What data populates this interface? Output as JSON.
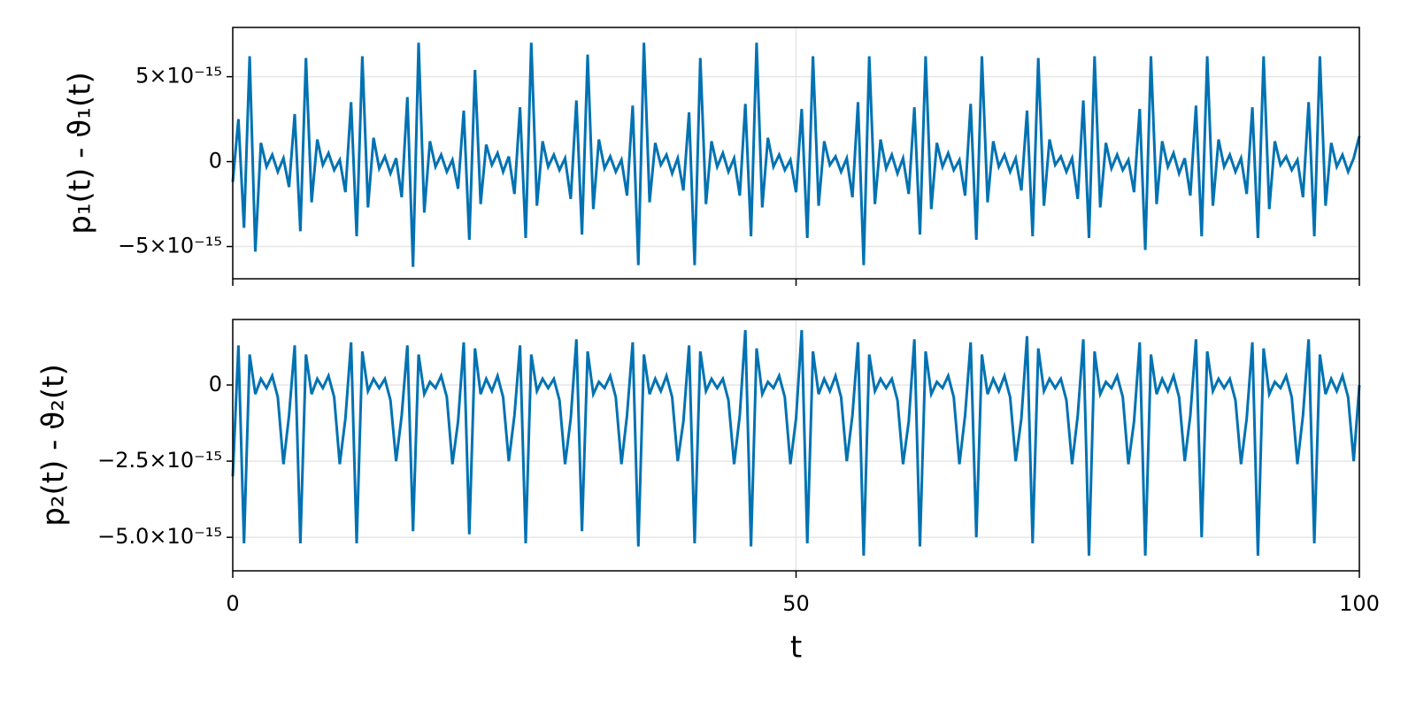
{
  "chart_data": [
    {
      "type": "line",
      "ylabel": "p₁(t) - ϑ₁(t)",
      "color": "#0072b2",
      "grid": true,
      "xlim": [
        0,
        100
      ],
      "xticks": [
        0,
        50,
        100
      ],
      "ylim": [
        -6.9e-15,
        7.9e-15
      ],
      "yticks": [
        {
          "value": -5e-15,
          "label": "−5×10⁻¹⁵"
        },
        0,
        {
          "value": 5e-15,
          "label": "5×10⁻¹⁵"
        }
      ],
      "x": [
        0,
        0.5,
        1,
        1.5,
        2,
        2.5,
        3,
        3.5,
        4,
        4.5,
        5,
        5.5,
        6,
        6.5,
        7,
        7.5,
        8,
        8.5,
        9,
        9.5,
        10,
        10.5,
        11,
        11.5,
        12,
        12.5,
        13,
        13.5,
        14,
        14.5,
        15,
        15.5,
        16,
        16.5,
        17,
        17.5,
        18,
        18.5,
        19,
        19.5,
        20,
        20.5,
        21,
        21.5,
        22,
        22.5,
        23,
        23.5,
        24,
        24.5,
        25,
        25.5,
        26,
        26.5,
        27,
        27.5,
        28,
        28.5,
        29,
        29.5,
        30,
        30.5,
        31,
        31.5,
        32,
        32.5,
        33,
        33.5,
        34,
        34.5,
        35,
        35.5,
        36,
        36.5,
        37,
        37.5,
        38,
        38.5,
        39,
        39.5,
        40,
        40.5,
        41,
        41.5,
        42,
        42.5,
        43,
        43.5,
        44,
        44.5,
        45,
        45.5,
        46,
        46.5,
        47,
        47.5,
        48,
        48.5,
        49,
        49.5,
        50,
        50.5,
        51,
        51.5,
        52,
        52.5,
        53,
        53.5,
        54,
        54.5,
        55,
        55.5,
        56,
        56.5,
        57,
        57.5,
        58,
        58.5,
        59,
        59.5,
        60,
        60.5,
        61,
        61.5,
        62,
        62.5,
        63,
        63.5,
        64,
        64.5,
        65,
        65.5,
        66,
        66.5,
        67,
        67.5,
        68,
        68.5,
        69,
        69.5,
        70,
        70.5,
        71,
        71.5,
        72,
        72.5,
        73,
        73.5,
        74,
        74.5,
        75,
        75.5,
        76,
        76.5,
        77,
        77.5,
        78,
        78.5,
        79,
        79.5,
        80,
        80.5,
        81,
        81.5,
        82,
        82.5,
        83,
        83.5,
        84,
        84.5,
        85,
        85.5,
        86,
        86.5,
        87,
        87.5,
        88,
        88.5,
        89,
        89.5,
        90,
        90.5,
        91,
        91.5,
        92,
        92.5,
        93,
        93.5,
        94,
        94.5,
        95,
        95.5,
        96,
        96.5,
        97,
        97.5,
        98,
        98.5,
        99,
        99.5,
        100
      ],
      "values": [
        -1.2e-15,
        2.5e-15,
        -3.9e-15,
        6.2e-15,
        -5.3e-15,
        1.1e-15,
        -3e-16,
        4e-16,
        -6e-16,
        2e-16,
        -1.5e-15,
        2.8e-15,
        -4.1e-15,
        6.1e-15,
        -2.4e-15,
        1.3e-15,
        -2e-16,
        5e-16,
        -5e-16,
        1e-16,
        -1.8e-15,
        3.5e-15,
        -4.4e-15,
        6.2e-15,
        -2.7e-15,
        1.4e-15,
        -4e-16,
        3e-16,
        -7e-16,
        2e-16,
        -2.1e-15,
        3.8e-15,
        -6.2e-15,
        7e-15,
        -3e-15,
        1.2e-15,
        -3e-16,
        4e-16,
        -6e-16,
        1e-16,
        -1.6e-15,
        3e-15,
        -4.6e-15,
        5.4e-15,
        -2.5e-15,
        1e-15,
        -2e-16,
        5e-16,
        -6e-16,
        3e-16,
        -1.9e-15,
        3.2e-15,
        -4.5e-15,
        7e-15,
        -2.6e-15,
        1.2e-15,
        -3e-16,
        4e-16,
        -5e-16,
        2e-16,
        -2.2e-15,
        3.6e-15,
        -4.3e-15,
        6.3e-15,
        -2.8e-15,
        1.3e-15,
        -4e-16,
        3e-16,
        -6e-16,
        1e-16,
        -2e-15,
        3.3e-15,
        -6.1e-15,
        7e-15,
        -2.4e-15,
        1.1e-15,
        -2e-16,
        4e-16,
        -7e-16,
        2e-16,
        -1.7e-15,
        2.9e-15,
        -6.1e-15,
        6.1e-15,
        -2.5e-15,
        1.2e-15,
        -3e-16,
        5e-16,
        -6e-16,
        2e-16,
        -2e-15,
        3.4e-15,
        -4.4e-15,
        7e-15,
        -2.7e-15,
        1.4e-15,
        -3e-16,
        4e-16,
        -5e-16,
        1e-16,
        -1.8e-15,
        3.1e-15,
        -4.5e-15,
        6.2e-15,
        -2.6e-15,
        1.2e-15,
        -2e-16,
        3e-16,
        -6e-16,
        2e-16,
        -2.1e-15,
        3.5e-15,
        -6.1e-15,
        6.2e-15,
        -2.5e-15,
        1.3e-15,
        -4e-16,
        4e-16,
        -7e-16,
        2e-16,
        -1.9e-15,
        3.2e-15,
        -4.3e-15,
        6.2e-15,
        -2.8e-15,
        1.1e-15,
        -3e-16,
        5e-16,
        -5e-16,
        1e-16,
        -2e-15,
        3.4e-15,
        -4.6e-15,
        6.2e-15,
        -2.4e-15,
        1.2e-15,
        -3e-16,
        4e-16,
        -6e-16,
        2e-16,
        -1.7e-15,
        3e-15,
        -4.4e-15,
        6.1e-15,
        -2.6e-15,
        1.3e-15,
        -2e-16,
        3e-16,
        -6e-16,
        2e-16,
        -2.2e-15,
        3.6e-15,
        -4.5e-15,
        6.2e-15,
        -2.7e-15,
        1.1e-15,
        -4e-16,
        4e-16,
        -5e-16,
        1e-16,
        -1.8e-15,
        3.1e-15,
        -5.2e-15,
        6.2e-15,
        -2.5e-15,
        1.2e-15,
        -3e-16,
        5e-16,
        -7e-16,
        2e-16,
        -2e-15,
        3.3e-15,
        -4.4e-15,
        6.2e-15,
        -2.6e-15,
        1.3e-15,
        -3e-16,
        4e-16,
        -6e-16,
        2e-16,
        -1.9e-15,
        3.2e-15,
        -4.5e-15,
        6.2e-15,
        -2.8e-15,
        1.2e-15,
        -2e-16,
        3e-16,
        -5e-16,
        1e-16,
        -2.1e-15,
        3.5e-15,
        -4.4e-15,
        6.2e-15,
        -2.6e-15,
        1.1e-15,
        -3e-16,
        4e-16,
        -6e-16,
        2e-16,
        1.5e-15
      ]
    },
    {
      "type": "line",
      "ylabel": "p₂(t) - ϑ₂(t)",
      "xlabel": "t",
      "color": "#0072b2",
      "grid": true,
      "xlim": [
        0,
        100
      ],
      "xticks": [
        0,
        50,
        100
      ],
      "ylim": [
        -6.1e-15,
        2.15e-15
      ],
      "yticks": [
        {
          "value": -5e-15,
          "label": "−5.0×10⁻¹⁵"
        },
        {
          "value": -2.5e-15,
          "label": "−2.5×10⁻¹⁵"
        },
        0
      ],
      "x": [
        0,
        0.5,
        1,
        1.5,
        2,
        2.5,
        3,
        3.5,
        4,
        4.5,
        5,
        5.5,
        6,
        6.5,
        7,
        7.5,
        8,
        8.5,
        9,
        9.5,
        10,
        10.5,
        11,
        11.5,
        12,
        12.5,
        13,
        13.5,
        14,
        14.5,
        15,
        15.5,
        16,
        16.5,
        17,
        17.5,
        18,
        18.5,
        19,
        19.5,
        20,
        20.5,
        21,
        21.5,
        22,
        22.5,
        23,
        23.5,
        24,
        24.5,
        25,
        25.5,
        26,
        26.5,
        27,
        27.5,
        28,
        28.5,
        29,
        29.5,
        30,
        30.5,
        31,
        31.5,
        32,
        32.5,
        33,
        33.5,
        34,
        34.5,
        35,
        35.5,
        36,
        36.5,
        37,
        37.5,
        38,
        38.5,
        39,
        39.5,
        40,
        40.5,
        41,
        41.5,
        42,
        42.5,
        43,
        43.5,
        44,
        44.5,
        45,
        45.5,
        46,
        46.5,
        47,
        47.5,
        48,
        48.5,
        49,
        49.5,
        50,
        50.5,
        51,
        51.5,
        52,
        52.5,
        53,
        53.5,
        54,
        54.5,
        55,
        55.5,
        56,
        56.5,
        57,
        57.5,
        58,
        58.5,
        59,
        59.5,
        60,
        60.5,
        61,
        61.5,
        62,
        62.5,
        63,
        63.5,
        64,
        64.5,
        65,
        65.5,
        66,
        66.5,
        67,
        67.5,
        68,
        68.5,
        69,
        69.5,
        70,
        70.5,
        71,
        71.5,
        72,
        72.5,
        73,
        73.5,
        74,
        74.5,
        75,
        75.5,
        76,
        76.5,
        77,
        77.5,
        78,
        78.5,
        79,
        79.5,
        80,
        80.5,
        81,
        81.5,
        82,
        82.5,
        83,
        83.5,
        84,
        84.5,
        85,
        85.5,
        86,
        86.5,
        87,
        87.5,
        88,
        88.5,
        89,
        89.5,
        90,
        90.5,
        91,
        91.5,
        92,
        92.5,
        93,
        93.5,
        94,
        94.5,
        95,
        95.5,
        96,
        96.5,
        97,
        97.5,
        98,
        98.5,
        99,
        99.5,
        100
      ],
      "values": [
        -3e-15,
        1.3e-15,
        -5.2e-15,
        1e-15,
        -3e-16,
        2e-16,
        -1e-16,
        3e-16,
        -4e-16,
        -2.6e-15,
        -1e-15,
        1.3e-15,
        -5.2e-15,
        1e-15,
        -3e-16,
        2e-16,
        -1e-16,
        3e-16,
        -4e-16,
        -2.6e-15,
        -1.1e-15,
        1.4e-15,
        -5.2e-15,
        1.1e-15,
        -2e-16,
        2e-16,
        -1e-16,
        2e-16,
        -5e-16,
        -2.5e-15,
        -1e-15,
        1.3e-15,
        -4.8e-15,
        1e-15,
        -3e-16,
        1e-16,
        -1e-16,
        3e-16,
        -4e-16,
        -2.6e-15,
        -1.2e-15,
        1.4e-15,
        -4.9e-15,
        1.2e-15,
        -3e-16,
        2e-16,
        -2e-16,
        3e-16,
        -4e-16,
        -2.5e-15,
        -1e-15,
        1.3e-15,
        -5.2e-15,
        1e-15,
        -2e-16,
        2e-16,
        -1e-16,
        2e-16,
        -5e-16,
        -2.6e-15,
        -1.1e-15,
        1.5e-15,
        -4.8e-15,
        1.1e-15,
        -3e-16,
        1e-16,
        -1e-16,
        3e-16,
        -4e-16,
        -2.6e-15,
        -1e-15,
        1.4e-15,
        -5.3e-15,
        1e-15,
        -3e-16,
        2e-16,
        -2e-16,
        3e-16,
        -4e-16,
        -2.5e-15,
        -1.2e-15,
        1.3e-15,
        -5.2e-15,
        1.1e-15,
        -2e-16,
        2e-16,
        -1e-16,
        2e-16,
        -5e-16,
        -2.6e-15,
        -1e-15,
        1.8e-15,
        -5.3e-15,
        1.2e-15,
        -3e-16,
        1e-16,
        -1e-16,
        3e-16,
        -4e-16,
        -2.6e-15,
        -1.1e-15,
        1.8e-15,
        -5.2e-15,
        1.1e-15,
        -3e-16,
        2e-16,
        -2e-16,
        3e-16,
        -4e-16,
        -2.5e-15,
        -1e-15,
        1.4e-15,
        -5.6e-15,
        1e-15,
        -2e-16,
        2e-16,
        -1e-16,
        2e-16,
        -5e-16,
        -2.6e-15,
        -1.2e-15,
        1.5e-15,
        -5.3e-15,
        1.1e-15,
        -3e-16,
        1e-16,
        -1e-16,
        3e-16,
        -4e-16,
        -2.6e-15,
        -1e-15,
        1.4e-15,
        -5e-15,
        1e-15,
        -3e-16,
        2e-16,
        -2e-16,
        3e-16,
        -4e-16,
        -2.5e-15,
        -1.1e-15,
        1.6e-15,
        -5.2e-15,
        1.2e-15,
        -2e-16,
        2e-16,
        -1e-16,
        2e-16,
        -5e-16,
        -2.6e-15,
        -1e-15,
        1.5e-15,
        -5.6e-15,
        1.1e-15,
        -3e-16,
        1e-16,
        -1e-16,
        3e-16,
        -4e-16,
        -2.6e-15,
        -1.2e-15,
        1.4e-15,
        -5.6e-15,
        1e-15,
        -3e-16,
        2e-16,
        -2e-16,
        3e-16,
        -4e-16,
        -2.5e-15,
        -1e-15,
        1.5e-15,
        -5e-15,
        1.1e-15,
        -2e-16,
        2e-16,
        -1e-16,
        2e-16,
        -5e-16,
        -2.6e-15,
        -1.1e-15,
        1.4e-15,
        -5.6e-15,
        1.2e-15,
        -3e-16,
        1e-16,
        -1e-16,
        3e-16,
        -4e-16,
        -2.6e-15,
        -1e-15,
        1.5e-15,
        -5.2e-15,
        1e-15,
        -3e-16,
        2e-16,
        -2e-16,
        3e-16,
        -4e-16,
        -2.5e-15,
        0
      ]
    }
  ]
}
